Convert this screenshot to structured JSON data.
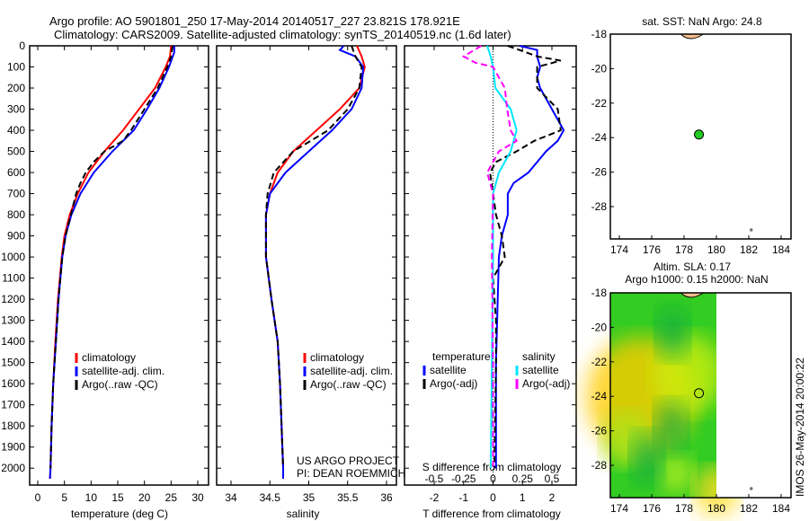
{
  "title_line1": "Argo profile: AO 5901801_250 17-May-2014 20140517_227 23.821S 178.921E",
  "title_line2": "Climatology: CARS2009. Satellite-adjusted climatology: synTS_20140519.nc (1.6d later)",
  "timestamp": "IMOS 26-May-2014 20:00:22",
  "project_line1": "US ARGO PROJECT",
  "project_line2": "PI: DEAN ROEMMICH",
  "colors": {
    "climatology": "#ff0000",
    "satellite": "#0000ff",
    "argo": "#000000",
    "s_satellite": "#00e5ff",
    "s_argo": "#ff00ff"
  },
  "chart_data": [
    {
      "type": "line",
      "title": "",
      "xlabel": "temperature (deg C)",
      "ylabel": "",
      "xlim": [
        -2,
        31
      ],
      "ylim": [
        2080,
        0
      ],
      "xticks": [
        0,
        5,
        10,
        15,
        20,
        25,
        30
      ],
      "yticks": [
        0,
        100,
        200,
        300,
        400,
        500,
        600,
        700,
        800,
        900,
        1000,
        1100,
        1200,
        1300,
        1400,
        1500,
        1600,
        1700,
        1800,
        1900,
        2000
      ],
      "legend": [
        "climatology",
        "satellite-adj. clim.",
        "Argo(..raw -QC)"
      ],
      "legend_position": "lower-center",
      "series": [
        {
          "name": "climatology",
          "color": "#ff0000",
          "depth": [
            0,
            50,
            100,
            200,
            300,
            400,
            500,
            600,
            700,
            800,
            900,
            1000,
            1200,
            1400,
            1600,
            1800,
            2000,
            2050
          ],
          "values": [
            25,
            24.8,
            24,
            22,
            19,
            16,
            12.5,
            9.5,
            7.5,
            6,
            5,
            4.5,
            3.8,
            3.3,
            2.9,
            2.6,
            2.4,
            2.3
          ]
        },
        {
          "name": "satellite-adj. clim.",
          "color": "#0000ff",
          "depth": [
            0,
            30,
            100,
            200,
            300,
            400,
            500,
            600,
            700,
            800,
            900,
            1000,
            1200,
            1400,
            1600,
            1800,
            2000,
            2050
          ],
          "values": [
            25.6,
            25.6,
            24.6,
            22.8,
            20.5,
            18,
            14,
            10.5,
            8,
            6.3,
            5.2,
            4.6,
            3.9,
            3.4,
            2.9,
            2.6,
            2.4,
            2.3
          ]
        },
        {
          "name": "Argo(..raw -QC)",
          "color": "#000000",
          "depth": [
            0,
            50,
            100,
            200,
            300,
            400,
            450,
            500,
            550,
            600,
            650,
            700,
            800,
            900,
            1000,
            1200,
            1400,
            1600,
            1800,
            2000
          ],
          "values": [
            25.3,
            25,
            24.3,
            22.5,
            20,
            17.5,
            16,
            12.5,
            10.5,
            9,
            8,
            7.2,
            6.2,
            5.2,
            4.6,
            3.9,
            3.4,
            2.9,
            2.6,
            2.4
          ]
        }
      ]
    },
    {
      "type": "line",
      "xlabel": "salinity",
      "xlim": [
        33.8,
        36.1
      ],
      "ylim": [
        2080,
        0
      ],
      "xticks": [
        34,
        34.5,
        35,
        35.5,
        36
      ],
      "legend": [
        "climatology",
        "satellite-adj. clim.",
        "Argo(..raw -QC)"
      ],
      "legend_position": "lower-center",
      "series": [
        {
          "name": "climatology",
          "color": "#ff0000",
          "depth": [
            0,
            50,
            100,
            200,
            300,
            400,
            500,
            600,
            700,
            800,
            1000,
            1200,
            1400,
            1600,
            2000,
            2050
          ],
          "values": [
            35.62,
            35.68,
            35.72,
            35.65,
            35.4,
            35.1,
            34.8,
            34.6,
            34.5,
            34.45,
            34.45,
            34.52,
            34.6,
            34.63,
            34.67,
            34.67
          ]
        },
        {
          "name": "satellite-adj. clim.",
          "color": "#0000ff",
          "depth": [
            0,
            20,
            50,
            100,
            200,
            300,
            400,
            500,
            600,
            700,
            800,
            1000,
            1200,
            1400,
            1600,
            2000,
            2050
          ],
          "values": [
            35.45,
            35.4,
            35.6,
            35.7,
            35.68,
            35.55,
            35.3,
            35.0,
            34.7,
            34.5,
            34.45,
            34.45,
            34.52,
            34.6,
            34.63,
            34.67,
            34.67
          ]
        },
        {
          "name": "Argo(..raw -QC)",
          "color": "#000000",
          "depth": [
            0,
            50,
            100,
            200,
            300,
            400,
            500,
            600,
            700,
            800,
            1000,
            1200,
            1400,
            1600,
            2000
          ],
          "values": [
            35.55,
            35.6,
            35.68,
            35.65,
            35.5,
            35.25,
            34.8,
            34.55,
            34.47,
            34.45,
            34.45,
            34.52,
            34.6,
            34.63,
            34.67
          ]
        }
      ]
    },
    {
      "type": "line",
      "xlabel": "T difference from climatology",
      "x2label": "S difference from climatology",
      "xlim": [
        -3,
        3
      ],
      "x2lim": [
        -0.75,
        0.75
      ],
      "ylim": [
        2080,
        0
      ],
      "xticks": [
        -2,
        -1,
        0,
        1,
        2
      ],
      "x2ticks": [
        "-0.5",
        "-0.25",
        "0",
        "0.25",
        "0.5"
      ],
      "legend": {
        "temperature": "temperature",
        "salinity": "salinity",
        "t_sat": "satellite",
        "t_argo": "Argo(-adj)",
        "s_sat": "satellite",
        "s_argo": "Argo(-adj)"
      },
      "series": [
        {
          "name": "temperature satellite",
          "units": "T",
          "color": "#0000ff",
          "depth": [
            0,
            20,
            50,
            100,
            150,
            200,
            300,
            400,
            450,
            500,
            600,
            650,
            700,
            800,
            900,
            1000,
            1500,
            2000
          ],
          "values": [
            0.9,
            1.5,
            1.5,
            1.6,
            1.5,
            1.6,
            2.0,
            2.4,
            2.2,
            1.8,
            1.2,
            0.7,
            0.5,
            0.5,
            0.3,
            0.2,
            0.1,
            0.1
          ]
        },
        {
          "name": "temperature Argo(-adj)",
          "units": "T",
          "color": "#000000",
          "depth": [
            0,
            50,
            70,
            100,
            200,
            300,
            400,
            450,
            500,
            550,
            600,
            700,
            800,
            900,
            1000,
            1100,
            1300,
            1500,
            2000
          ],
          "values": [
            0.5,
            1.5,
            2.3,
            1.5,
            1.5,
            2.2,
            2.3,
            1.4,
            0.8,
            0.1,
            -0.1,
            0,
            0.1,
            0.3,
            0.4,
            0,
            0.1,
            0.1,
            0.05
          ]
        },
        {
          "name": "salinity satellite",
          "units": "S",
          "color": "#00e5ff",
          "depth": [
            0,
            50,
            100,
            200,
            300,
            400,
            500,
            600,
            700,
            800,
            1000,
            1500,
            2000
          ],
          "values": [
            -0.05,
            -0.02,
            0,
            0.02,
            0.15,
            0.2,
            0.15,
            0.05,
            0,
            0,
            0,
            -0.01,
            -0.02
          ]
        },
        {
          "name": "salinity Argo(-adj)",
          "units": "S",
          "color": "#ff00ff",
          "depth": [
            0,
            50,
            80,
            100,
            200,
            300,
            400,
            450,
            500,
            600,
            700,
            1000,
            1500,
            2000
          ],
          "values": [
            -0.1,
            -0.25,
            -0.15,
            0,
            0.1,
            0.12,
            0.15,
            0.2,
            0.05,
            -0.05,
            0,
            -0.01,
            0,
            0
          ]
        }
      ]
    },
    {
      "type": "scatter",
      "title": "sat. SST: NaN Argo: 24.8",
      "xlim": [
        173.4,
        184.6
      ],
      "ylim": [
        -29.9,
        -17.9
      ],
      "xticks": [
        174,
        176,
        178,
        180,
        182,
        184
      ],
      "yticks": [
        -18,
        -20,
        -22,
        -24,
        -26,
        -28
      ],
      "points": [
        {
          "lon": 178.921,
          "lat": -23.821,
          "color": "#22cc22"
        }
      ]
    },
    {
      "type": "heatmap",
      "title_line1": "Altim. SLA: 0.17",
      "title_line2": "Argo h1000: 0.15 h2000: NaN",
      "xlim": [
        173.4,
        184.6
      ],
      "ylim": [
        -29.9,
        -17.9
      ],
      "xticks": [
        174,
        176,
        178,
        180,
        182,
        184
      ],
      "yticks": [
        -18,
        -20,
        -22,
        -24,
        -26,
        -28
      ],
      "points": [
        {
          "lon": 178.921,
          "lat": -23.821
        }
      ]
    }
  ]
}
